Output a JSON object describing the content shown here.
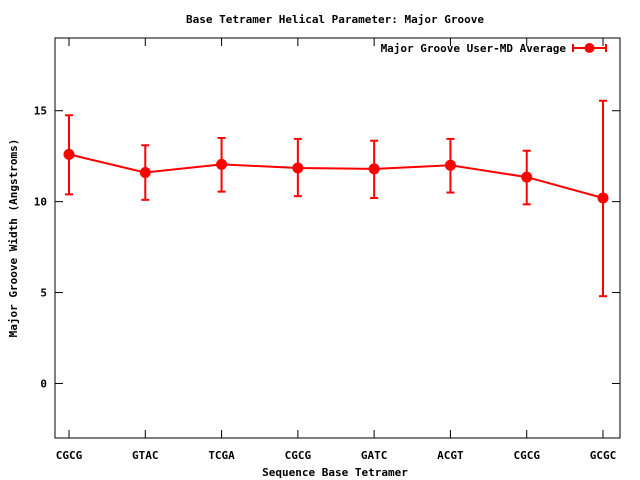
{
  "chart_data": {
    "type": "line",
    "title": "Base Tetramer Helical Parameter: Major Groove",
    "xlabel": "Sequence Base Tetramer",
    "ylabel": "Major Groove Width (Angstroms)",
    "categories": [
      "CGCG",
      "GTAC",
      "TCGA",
      "CGCG",
      "GATC",
      "ACGT",
      "CGCG",
      "GCGC"
    ],
    "ylim": [
      -3,
      19
    ],
    "yticks": [
      "0",
      "5",
      "10",
      "15"
    ],
    "ytick_values": [
      0,
      5,
      10,
      15
    ],
    "grid": false,
    "legend_position": "top-right",
    "series": [
      {
        "name": "Major Groove User-MD Average",
        "color": "#ff0000",
        "values": [
          12.6,
          11.6,
          12.05,
          11.85,
          11.8,
          12.0,
          11.35,
          10.2
        ],
        "error_low": [
          10.4,
          10.1,
          10.55,
          10.3,
          10.2,
          10.5,
          9.85,
          4.8
        ],
        "error_high": [
          14.75,
          13.1,
          13.5,
          13.45,
          13.35,
          13.45,
          12.8,
          15.55
        ]
      }
    ]
  }
}
